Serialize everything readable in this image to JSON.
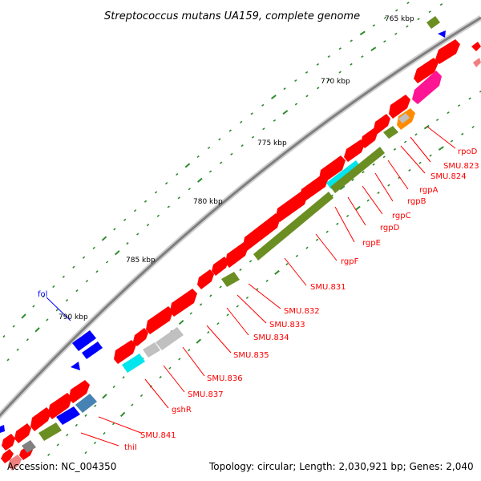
{
  "title": "Streptococcus mutans UA159, complete genome",
  "footer": {
    "accession": "Accession: NC_004350",
    "topology": "Topology: circular; Length: 2,030,921 bp; Genes: 2,040"
  },
  "kbp_labels": [
    "765 kbp",
    "770 kbp",
    "775 kbp",
    "780 kbp",
    "785 kbp",
    "790 kbp"
  ],
  "gene_labels": [
    "rpoD",
    "SMU.823",
    "SMU.824",
    "rgpA",
    "rgpB",
    "rgpC",
    "rgpD",
    "rgpE",
    "rgpF",
    "SMU.831",
    "SMU.832",
    "SMU.833",
    "SMU.834",
    "SMU.835",
    "SMU.836",
    "SMU.837",
    "gshR",
    "SMU.841",
    "thiI",
    "fol"
  ],
  "colors": {
    "forward_gene": "#ff0000",
    "reverse_gene_green": "#6b8e23",
    "reverse_gene_blue": "#0000ff",
    "gray_gene": "#c0c0c0",
    "cyan_gene": "#00e5ee",
    "steelblue_gene": "#4682b4",
    "pink_gene": "#ff1493",
    "orange_gene": "#ff8c00",
    "label_red": "#ff0000",
    "label_blue": "#0000ff",
    "backbone": "#808080"
  }
}
